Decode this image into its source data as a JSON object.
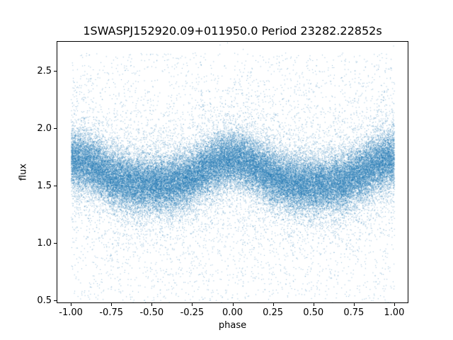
{
  "chart_data": {
    "type": "scatter",
    "title": "1SWASPJ152920.09+011950.0 Period 23282.22852s",
    "xlabel": "phase",
    "ylabel": "flux",
    "xlim": [
      -1.088,
      1.088
    ],
    "ylim": [
      0.475,
      2.76
    ],
    "xticks": {
      "values": [
        -1.0,
        -0.75,
        -0.5,
        -0.25,
        0.0,
        0.25,
        0.5,
        0.75,
        1.0
      ],
      "labels": [
        "-1.00",
        "-0.75",
        "-0.50",
        "-0.25",
        "0.00",
        "0.25",
        "0.50",
        "0.75",
        "1.00"
      ]
    },
    "yticks": {
      "values": [
        0.5,
        1.0,
        1.5,
        2.0,
        2.5
      ],
      "labels": [
        "0.5",
        "1.0",
        "1.5",
        "2.0",
        "2.5"
      ]
    },
    "grid": false,
    "legend": null,
    "point_color": "#1f77b4",
    "point_alpha": 0.5,
    "point_size": 1,
    "n_points": 60000,
    "seed": 7,
    "model": {
      "comment": "phase-folded light curve: flux mean varies sinusoidally with phase, peak ~1.73 at phase 0 and +/-1, trough ~1.49 near +/-0.5, dense noisy core plus sparse outliers spanning 0.48-2.66",
      "baseline": 1.6,
      "harmonics": [
        {
          "freq": 1,
          "amp": 0.11
        },
        {
          "freq": 2,
          "amp": 0.02
        }
      ],
      "core_sigma": 0.125,
      "wide_sigma": 0.33,
      "wide_fraction": 0.12,
      "outlier_fraction": 0.05,
      "outlier_range": [
        0.48,
        2.66
      ],
      "x_range": [
        -1,
        1
      ]
    }
  }
}
